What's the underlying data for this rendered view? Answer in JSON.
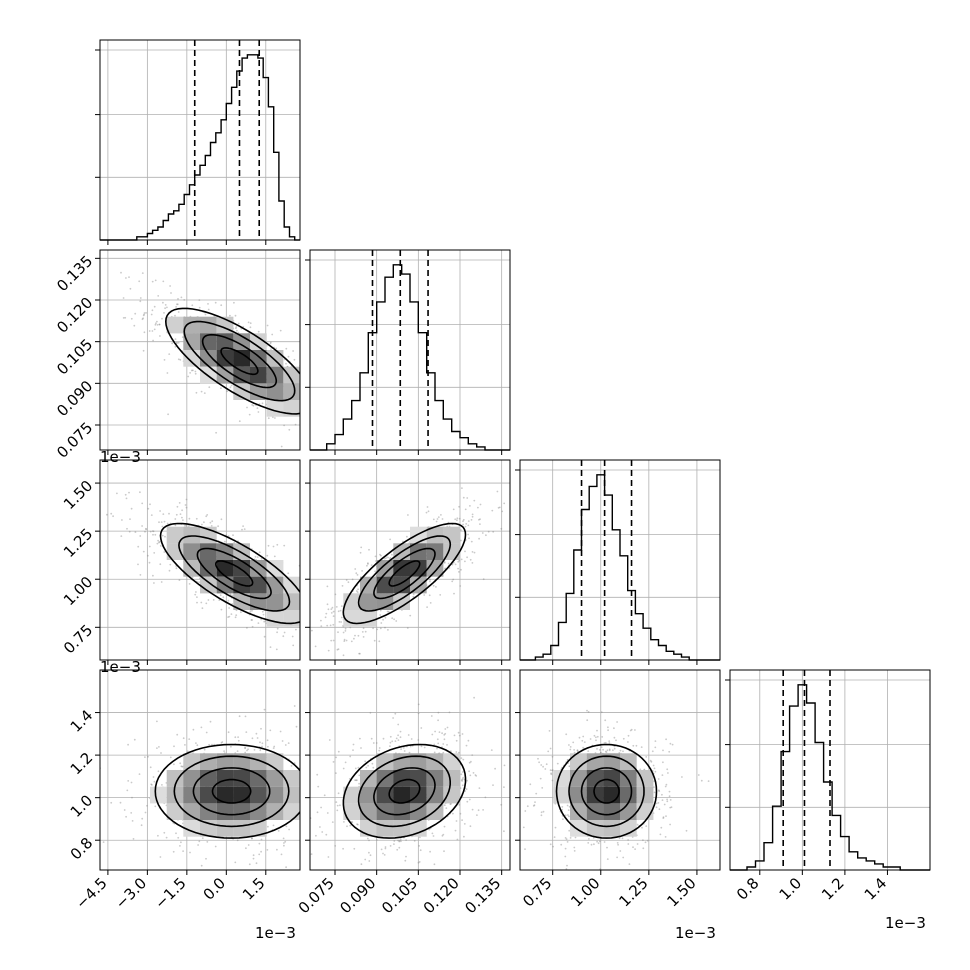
{
  "chart_data": {
    "type": "corner",
    "grid": true,
    "parameters": [
      {
        "range": [
          -4.8,
          2.8
        ],
        "ticks": [
          -4.5,
          -3.0,
          -1.5,
          0.0,
          1.5
        ],
        "tick_labels": [
          "−4.5",
          "−3.0",
          "−1.5",
          "0.0",
          "1.5"
        ],
        "offset_label": "1e−3",
        "quantiles": [
          -1.2,
          0.5,
          1.25
        ],
        "hist_x": [
          -4.8,
          -4.6,
          -4.4,
          -4.2,
          -4.0,
          -3.8,
          -3.6,
          -3.4,
          -3.2,
          -3.0,
          -2.8,
          -2.6,
          -2.4,
          -2.2,
          -2.0,
          -1.8,
          -1.6,
          -1.4,
          -1.2,
          -1.0,
          -0.8,
          -0.6,
          -0.4,
          -0.2,
          0.0,
          0.2,
          0.4,
          0.6,
          0.8,
          1.0,
          1.2,
          1.4,
          1.6,
          1.8,
          2.0,
          2.2,
          2.4,
          2.6,
          2.8
        ],
        "hist_counts": [
          0,
          0,
          0,
          0,
          0,
          0,
          0,
          1,
          1,
          2,
          3,
          4,
          6,
          8,
          9,
          11,
          14,
          17,
          20,
          23,
          26,
          30,
          33,
          37,
          42,
          47,
          52,
          56,
          57,
          57,
          56,
          50,
          41,
          27,
          12,
          4,
          1,
          0
        ]
      },
      {
        "range": [
          0.066,
          0.138
        ],
        "ticks": [
          0.075,
          0.09,
          0.105,
          0.12,
          0.135
        ],
        "tick_labels": [
          "0.075",
          "0.090",
          "0.105",
          "0.120",
          "0.135"
        ],
        "offset_label": "",
        "quantiles": [
          0.0885,
          0.0985,
          0.1085
        ],
        "hist_x": [
          0.066,
          0.069,
          0.072,
          0.075,
          0.078,
          0.081,
          0.084,
          0.087,
          0.09,
          0.093,
          0.096,
          0.099,
          0.102,
          0.105,
          0.108,
          0.111,
          0.114,
          0.117,
          0.12,
          0.123,
          0.126,
          0.129,
          0.132,
          0.135,
          0.138
        ],
        "hist_counts": [
          0,
          0,
          2,
          5,
          10,
          16,
          25,
          38,
          48,
          56,
          60,
          57,
          48,
          38,
          25,
          16,
          10,
          6,
          4,
          2,
          1,
          0,
          0,
          0
        ]
      },
      {
        "range": [
          0.58,
          1.62
        ],
        "ticks": [
          0.75,
          1.0,
          1.25,
          1.5
        ],
        "tick_labels": [
          "0.75",
          "1.00",
          "1.25",
          "1.50"
        ],
        "offset_label": "1e−3",
        "quantiles": [
          0.9,
          1.02,
          1.16
        ],
        "hist_x": [
          0.58,
          0.62,
          0.66,
          0.7,
          0.74,
          0.78,
          0.82,
          0.86,
          0.9,
          0.94,
          0.98,
          1.02,
          1.06,
          1.1,
          1.14,
          1.18,
          1.22,
          1.26,
          1.3,
          1.34,
          1.38,
          1.42,
          1.46,
          1.5,
          1.54,
          1.58,
          1.62
        ],
        "hist_counts": [
          0,
          0,
          1,
          2,
          5,
          13,
          23,
          38,
          52,
          60,
          64,
          57,
          45,
          36,
          24,
          16,
          11,
          7,
          5,
          3,
          2,
          1,
          0,
          0,
          0,
          0
        ]
      },
      {
        "range": [
          0.66,
          1.6
        ],
        "ticks": [
          0.8,
          1.0,
          1.2,
          1.4
        ],
        "tick_labels": [
          "0.8",
          "1.0",
          "1.2",
          "1.4"
        ],
        "offset_label": "1e−3",
        "quantiles": [
          0.91,
          1.01,
          1.13
        ],
        "hist_x": [
          0.66,
          0.7,
          0.74,
          0.78,
          0.82,
          0.86,
          0.9,
          0.94,
          0.98,
          1.02,
          1.06,
          1.1,
          1.14,
          1.18,
          1.22,
          1.26,
          1.3,
          1.34,
          1.38,
          1.42,
          1.46,
          1.5,
          1.54,
          1.58,
          1.6
        ],
        "hist_counts": [
          0,
          0,
          1,
          3,
          9,
          21,
          39,
          54,
          61,
          55,
          42,
          29,
          18,
          11,
          6,
          4,
          3,
          2,
          1,
          1,
          0,
          0,
          0,
          0
        ]
      }
    ],
    "pairs": [
      {
        "x": 0,
        "y": 1,
        "mean": [
          0.5,
          0.098
        ],
        "std": [
          1.4,
          0.0095
        ],
        "corr": -0.75
      },
      {
        "x": 0,
        "y": 2,
        "mean": [
          0.3,
          1.03
        ],
        "std": [
          1.4,
          0.13
        ],
        "corr": -0.75
      },
      {
        "x": 1,
        "y": 2,
        "mean": [
          0.1,
          1.03
        ],
        "std": [
          0.011,
          0.13
        ],
        "corr": 0.78
      },
      {
        "x": 0,
        "y": 3,
        "mean": [
          0.2,
          1.03
        ],
        "std": [
          1.45,
          0.11
        ],
        "corr": 0.0
      },
      {
        "x": 1,
        "y": 3,
        "mean": [
          0.1,
          1.03
        ],
        "std": [
          0.011,
          0.11
        ],
        "corr": 0.25
      },
      {
        "x": 2,
        "y": 3,
        "mean": [
          1.03,
          1.03
        ],
        "std": [
          0.13,
          0.11
        ],
        "corr": 0.0
      }
    ]
  }
}
